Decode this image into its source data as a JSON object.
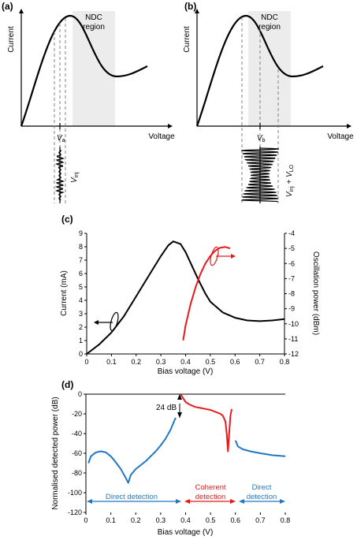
{
  "panels": {
    "a": {
      "label": "(a)",
      "ylabel": "Current",
      "xlabel": "Voltage",
      "region_label": [
        "NDC",
        "region"
      ],
      "bias_label": "V",
      "bias_sub": "a",
      "signal_label": "V",
      "signal_sub": "inj"
    },
    "b": {
      "label": "(b)",
      "ylabel": "Current",
      "xlabel": "Voltage",
      "region_label": [
        "NDC",
        "region"
      ],
      "bias_label": "V",
      "bias_sub": "b",
      "signal_label_1": "V",
      "signal_sub_1": "inj",
      "signal_plus": " + V",
      "signal_sub_2": "LO"
    }
  },
  "chart_data": [
    {
      "panel": "(c)",
      "type": "line",
      "xlabel": "Bias voltage (V)",
      "ylabel": "Current (mA)",
      "ylabel_right": "Oscillation power (dBm)",
      "xlim": [
        0,
        0.8
      ],
      "ylim": [
        0,
        9
      ],
      "ylim_right": [
        -12,
        -4
      ],
      "xticks": [
        "0",
        "0.1",
        "0.2",
        "0.3",
        "0.4",
        "0.5",
        "0.6",
        "0.7",
        "0.8"
      ],
      "yticks": [
        "0",
        "1",
        "2",
        "3",
        "4",
        "5",
        "6",
        "7",
        "8",
        "9"
      ],
      "yticks_right": [
        "-12",
        "-11",
        "-10",
        "-9",
        "-8",
        "-7",
        "-6",
        "-5",
        "-4"
      ],
      "series": [
        {
          "axis": "left",
          "color": "#000000",
          "x": [
            0,
            0.05,
            0.1,
            0.15,
            0.2,
            0.25,
            0.3,
            0.33,
            0.35,
            0.38,
            0.4,
            0.42,
            0.45,
            0.48,
            0.5,
            0.55,
            0.6,
            0.65,
            0.7,
            0.75,
            0.8
          ],
          "y": [
            0,
            0.7,
            1.6,
            2.8,
            4.3,
            5.8,
            7.3,
            8.1,
            8.4,
            8.2,
            7.6,
            6.8,
            5.6,
            4.5,
            3.9,
            3.1,
            2.7,
            2.5,
            2.45,
            2.5,
            2.6
          ]
        },
        {
          "axis": "right",
          "color": "#e8191b",
          "x": [
            0.39,
            0.4,
            0.42,
            0.44,
            0.46,
            0.48,
            0.5,
            0.52,
            0.54,
            0.56,
            0.58
          ],
          "y": [
            -11.1,
            -10.1,
            -8.7,
            -7.6,
            -6.7,
            -6.0,
            -5.5,
            -5.15,
            -4.95,
            -4.9,
            -5.0
          ]
        }
      ]
    },
    {
      "panel": "(d)",
      "type": "line",
      "xlabel": "Bias voltage (V)",
      "ylabel": "Normalised detected power (dB)",
      "xlim": [
        0,
        0.8
      ],
      "ylim": [
        -120,
        0
      ],
      "xticks": [
        "0",
        "0.1",
        "0.2",
        "0.3",
        "0.4",
        "0.5",
        "0.6",
        "0.7",
        "0.8"
      ],
      "yticks": [
        "0",
        "-20",
        "-40",
        "-60",
        "-80",
        "-100",
        "-120"
      ],
      "series": [
        {
          "color": "#1f77c4",
          "x": [
            0.01,
            0.02,
            0.04,
            0.06,
            0.08,
            0.1,
            0.12,
            0.14,
            0.16,
            0.17,
            0.18,
            0.2,
            0.22,
            0.24,
            0.26,
            0.28,
            0.3,
            0.32,
            0.34,
            0.36
          ],
          "y": [
            -70,
            -63,
            -59,
            -58,
            -59,
            -63,
            -69,
            -76,
            -85,
            -90,
            -82,
            -76,
            -72,
            -68,
            -63,
            -58,
            -52,
            -45,
            -36,
            -24
          ]
        },
        {
          "color": "#e8191b",
          "x": [
            0.38,
            0.39,
            0.4,
            0.42,
            0.44,
            0.46,
            0.48,
            0.5,
            0.52,
            0.54,
            0.55,
            0.56,
            0.565,
            0.57,
            0.575,
            0.58,
            0.585
          ],
          "y": [
            0,
            -4,
            -8,
            -11,
            -13,
            -14,
            -15,
            -16,
            -18,
            -20,
            -22,
            -28,
            -40,
            -58,
            -40,
            -22,
            -15
          ]
        },
        {
          "color": "#1f77c4",
          "x": [
            0.6,
            0.61,
            0.63,
            0.66,
            0.7,
            0.75,
            0.8
          ],
          "y": [
            -47,
            -53,
            -56,
            -58,
            -60,
            -62,
            -63
          ]
        }
      ],
      "annotations": {
        "gap_label": "24 dB",
        "regions": [
          {
            "label": [
              "Direct detection"
            ],
            "color": "#1f77c4"
          },
          {
            "label": [
              "Coherent",
              "detection"
            ],
            "color": "#e8191b"
          },
          {
            "label": [
              "Direct",
              "detection"
            ],
            "color": "#1f77c4"
          }
        ]
      }
    }
  ],
  "colors": {
    "axis": "#000000",
    "ndc_region": "#ececec",
    "dashed": "#808080",
    "red": "#e8191b",
    "blue": "#1f77c4"
  }
}
